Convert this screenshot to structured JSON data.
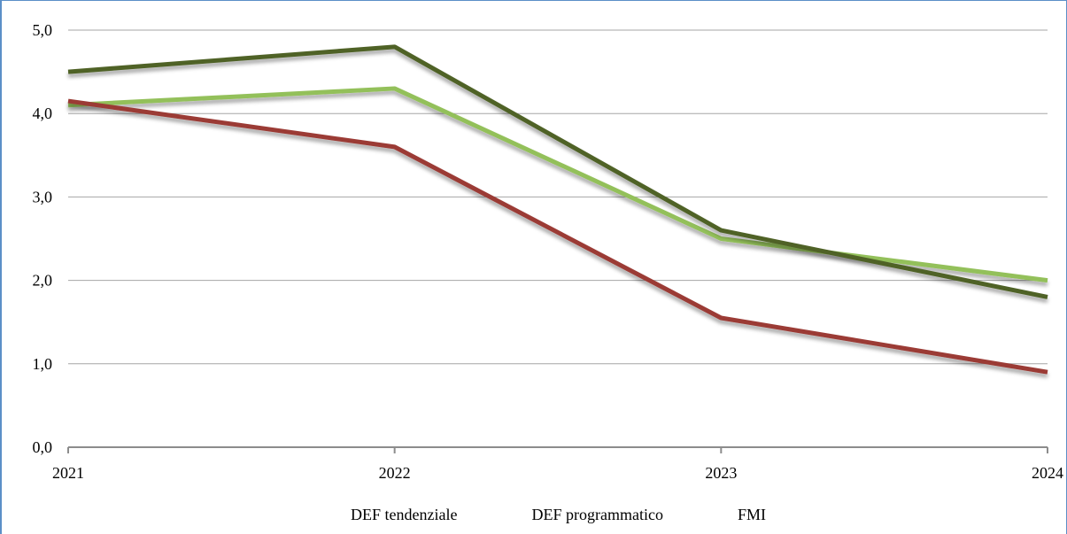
{
  "chart_data": {
    "type": "line",
    "title": "",
    "xlabel": "",
    "ylabel": "",
    "x": [
      "2021",
      "2022",
      "2023",
      "2024"
    ],
    "ylim": [
      0,
      5
    ],
    "yticks": [
      "0,0",
      "1,0",
      "2,0",
      "3,0",
      "4,0",
      "5,0"
    ],
    "grid": true,
    "legend_position": "bottom",
    "series": [
      {
        "name": "DEF tendenziale",
        "values": [
          4.1,
          4.3,
          2.5,
          2.0
        ],
        "color": "#93c05a"
      },
      {
        "name": "DEF programmatico",
        "values": [
          4.5,
          4.8,
          2.6,
          1.8
        ],
        "color": "#4f6228"
      },
      {
        "name": "FMI",
        "values": [
          4.15,
          3.6,
          1.55,
          0.9
        ],
        "color": "#9b3a35"
      }
    ]
  }
}
